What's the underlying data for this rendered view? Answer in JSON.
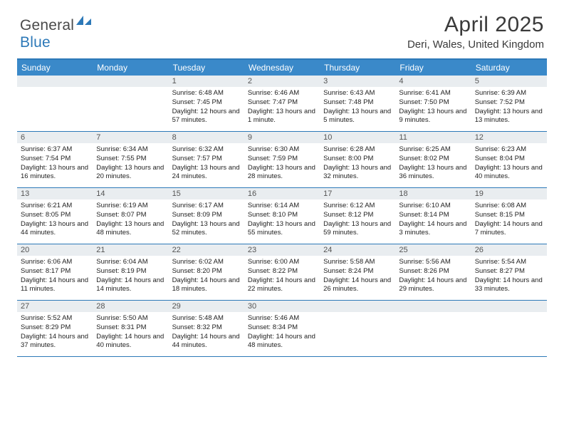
{
  "logo": {
    "text1": "General",
    "text2": "Blue"
  },
  "title": "April 2025",
  "location": "Deri, Wales, United Kingdom",
  "colors": {
    "header_bar": "#3a89c9",
    "accent": "#2d79b8",
    "daynum_bg": "#e9edf0",
    "text": "#2a2a2a"
  },
  "weekdays": [
    "Sunday",
    "Monday",
    "Tuesday",
    "Wednesday",
    "Thursday",
    "Friday",
    "Saturday"
  ],
  "weeks": [
    [
      {
        "n": "",
        "lines": []
      },
      {
        "n": "",
        "lines": []
      },
      {
        "n": "1",
        "lines": [
          "Sunrise: 6:48 AM",
          "Sunset: 7:45 PM",
          "Daylight: 12 hours and 57 minutes."
        ]
      },
      {
        "n": "2",
        "lines": [
          "Sunrise: 6:46 AM",
          "Sunset: 7:47 PM",
          "Daylight: 13 hours and 1 minute."
        ]
      },
      {
        "n": "3",
        "lines": [
          "Sunrise: 6:43 AM",
          "Sunset: 7:48 PM",
          "Daylight: 13 hours and 5 minutes."
        ]
      },
      {
        "n": "4",
        "lines": [
          "Sunrise: 6:41 AM",
          "Sunset: 7:50 PM",
          "Daylight: 13 hours and 9 minutes."
        ]
      },
      {
        "n": "5",
        "lines": [
          "Sunrise: 6:39 AM",
          "Sunset: 7:52 PM",
          "Daylight: 13 hours and 13 minutes."
        ]
      }
    ],
    [
      {
        "n": "6",
        "lines": [
          "Sunrise: 6:37 AM",
          "Sunset: 7:54 PM",
          "Daylight: 13 hours and 16 minutes."
        ]
      },
      {
        "n": "7",
        "lines": [
          "Sunrise: 6:34 AM",
          "Sunset: 7:55 PM",
          "Daylight: 13 hours and 20 minutes."
        ]
      },
      {
        "n": "8",
        "lines": [
          "Sunrise: 6:32 AM",
          "Sunset: 7:57 PM",
          "Daylight: 13 hours and 24 minutes."
        ]
      },
      {
        "n": "9",
        "lines": [
          "Sunrise: 6:30 AM",
          "Sunset: 7:59 PM",
          "Daylight: 13 hours and 28 minutes."
        ]
      },
      {
        "n": "10",
        "lines": [
          "Sunrise: 6:28 AM",
          "Sunset: 8:00 PM",
          "Daylight: 13 hours and 32 minutes."
        ]
      },
      {
        "n": "11",
        "lines": [
          "Sunrise: 6:25 AM",
          "Sunset: 8:02 PM",
          "Daylight: 13 hours and 36 minutes."
        ]
      },
      {
        "n": "12",
        "lines": [
          "Sunrise: 6:23 AM",
          "Sunset: 8:04 PM",
          "Daylight: 13 hours and 40 minutes."
        ]
      }
    ],
    [
      {
        "n": "13",
        "lines": [
          "Sunrise: 6:21 AM",
          "Sunset: 8:05 PM",
          "Daylight: 13 hours and 44 minutes."
        ]
      },
      {
        "n": "14",
        "lines": [
          "Sunrise: 6:19 AM",
          "Sunset: 8:07 PM",
          "Daylight: 13 hours and 48 minutes."
        ]
      },
      {
        "n": "15",
        "lines": [
          "Sunrise: 6:17 AM",
          "Sunset: 8:09 PM",
          "Daylight: 13 hours and 52 minutes."
        ]
      },
      {
        "n": "16",
        "lines": [
          "Sunrise: 6:14 AM",
          "Sunset: 8:10 PM",
          "Daylight: 13 hours and 55 minutes."
        ]
      },
      {
        "n": "17",
        "lines": [
          "Sunrise: 6:12 AM",
          "Sunset: 8:12 PM",
          "Daylight: 13 hours and 59 minutes."
        ]
      },
      {
        "n": "18",
        "lines": [
          "Sunrise: 6:10 AM",
          "Sunset: 8:14 PM",
          "Daylight: 14 hours and 3 minutes."
        ]
      },
      {
        "n": "19",
        "lines": [
          "Sunrise: 6:08 AM",
          "Sunset: 8:15 PM",
          "Daylight: 14 hours and 7 minutes."
        ]
      }
    ],
    [
      {
        "n": "20",
        "lines": [
          "Sunrise: 6:06 AM",
          "Sunset: 8:17 PM",
          "Daylight: 14 hours and 11 minutes."
        ]
      },
      {
        "n": "21",
        "lines": [
          "Sunrise: 6:04 AM",
          "Sunset: 8:19 PM",
          "Daylight: 14 hours and 14 minutes."
        ]
      },
      {
        "n": "22",
        "lines": [
          "Sunrise: 6:02 AM",
          "Sunset: 8:20 PM",
          "Daylight: 14 hours and 18 minutes."
        ]
      },
      {
        "n": "23",
        "lines": [
          "Sunrise: 6:00 AM",
          "Sunset: 8:22 PM",
          "Daylight: 14 hours and 22 minutes."
        ]
      },
      {
        "n": "24",
        "lines": [
          "Sunrise: 5:58 AM",
          "Sunset: 8:24 PM",
          "Daylight: 14 hours and 26 minutes."
        ]
      },
      {
        "n": "25",
        "lines": [
          "Sunrise: 5:56 AM",
          "Sunset: 8:26 PM",
          "Daylight: 14 hours and 29 minutes."
        ]
      },
      {
        "n": "26",
        "lines": [
          "Sunrise: 5:54 AM",
          "Sunset: 8:27 PM",
          "Daylight: 14 hours and 33 minutes."
        ]
      }
    ],
    [
      {
        "n": "27",
        "lines": [
          "Sunrise: 5:52 AM",
          "Sunset: 8:29 PM",
          "Daylight: 14 hours and 37 minutes."
        ]
      },
      {
        "n": "28",
        "lines": [
          "Sunrise: 5:50 AM",
          "Sunset: 8:31 PM",
          "Daylight: 14 hours and 40 minutes."
        ]
      },
      {
        "n": "29",
        "lines": [
          "Sunrise: 5:48 AM",
          "Sunset: 8:32 PM",
          "Daylight: 14 hours and 44 minutes."
        ]
      },
      {
        "n": "30",
        "lines": [
          "Sunrise: 5:46 AM",
          "Sunset: 8:34 PM",
          "Daylight: 14 hours and 48 minutes."
        ]
      },
      {
        "n": "",
        "lines": []
      },
      {
        "n": "",
        "lines": []
      },
      {
        "n": "",
        "lines": []
      }
    ]
  ]
}
